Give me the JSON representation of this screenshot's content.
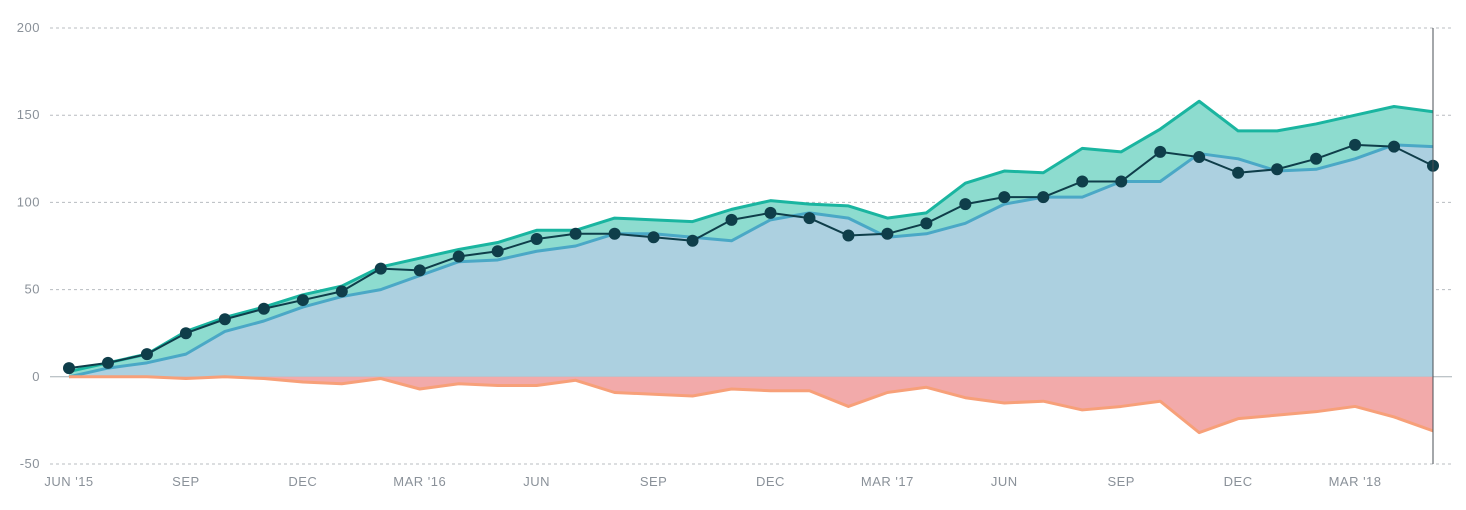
{
  "chart_data": {
    "type": "area",
    "x_tick_labels": [
      "JUN '15",
      "SEP",
      "DEC",
      "MAR '16",
      "JUN",
      "SEP",
      "DEC",
      "MAR '17",
      "JUN",
      "SEP",
      "DEC",
      "MAR '18"
    ],
    "y_tick_labels": [
      "200",
      "150",
      "100",
      "50",
      "0",
      "-50"
    ],
    "y_ticks": [
      200,
      150,
      100,
      50,
      0,
      -50
    ],
    "ylim": [
      -50,
      200
    ],
    "grid": true,
    "months": [
      "2015-06",
      "2015-07",
      "2015-08",
      "2015-09",
      "2015-10",
      "2015-11",
      "2015-12",
      "2016-01",
      "2016-02",
      "2016-03",
      "2016-04",
      "2016-05",
      "2016-06",
      "2016-07",
      "2016-08",
      "2016-09",
      "2016-10",
      "2016-11",
      "2016-12",
      "2017-01",
      "2017-02",
      "2017-03",
      "2017-04",
      "2017-05",
      "2017-06",
      "2017-07",
      "2017-08",
      "2017-09",
      "2017-10",
      "2017-11",
      "2017-12",
      "2018-01",
      "2018-02",
      "2018-03",
      "2018-04",
      "2018-05"
    ],
    "series": [
      {
        "values": [
          0,
          5,
          8,
          13,
          26,
          32,
          40,
          46,
          50,
          58,
          66,
          67,
          72,
          75,
          82,
          82,
          80,
          78,
          90,
          94,
          91,
          80,
          82,
          88,
          99,
          103,
          103,
          112,
          112,
          128,
          125,
          118,
          119,
          125,
          133,
          132
        ]
      },
      {
        "values": [
          3,
          8,
          13,
          26,
          34,
          40,
          47,
          52,
          63,
          68,
          73,
          77,
          84,
          84,
          91,
          90,
          89,
          96,
          101,
          99,
          98,
          91,
          94,
          111,
          118,
          117,
          131,
          129,
          142,
          158,
          141,
          141,
          145,
          150,
          155,
          152
        ]
      },
      {
        "values": [
          0,
          0,
          0,
          -1,
          0,
          -1,
          -3,
          -4,
          -1,
          -7,
          -4,
          -5,
          -5,
          -2,
          -9,
          -10,
          -11,
          -7,
          -8,
          -8,
          -17,
          -9,
          -6,
          -12,
          -15,
          -14,
          -19,
          -17,
          -14,
          -32,
          -24,
          -22,
          -20,
          -17,
          -23,
          -31
        ]
      },
      {
        "values": [
          5,
          8,
          13,
          25,
          33,
          39,
          44,
          49,
          62,
          61,
          69,
          72,
          79,
          82,
          82,
          80,
          78,
          90,
          94,
          91,
          81,
          82,
          88,
          99,
          103,
          103,
          112,
          112,
          129,
          126,
          117,
          119,
          125,
          133,
          132,
          121
        ]
      }
    ],
    "colors": {
      "blue_fill": "#acd0e0",
      "blue_line": "#4aa8c6",
      "green_fill": "#8ddccf",
      "green_line": "#1ab5a0",
      "red_fill": "#f2aaaa",
      "red_line": "#f7a079",
      "net_line": "#0f3e4a",
      "grid": "#b8bcc0",
      "zero_line": "#a7b0b6",
      "axis_text": "#8a9199"
    }
  }
}
